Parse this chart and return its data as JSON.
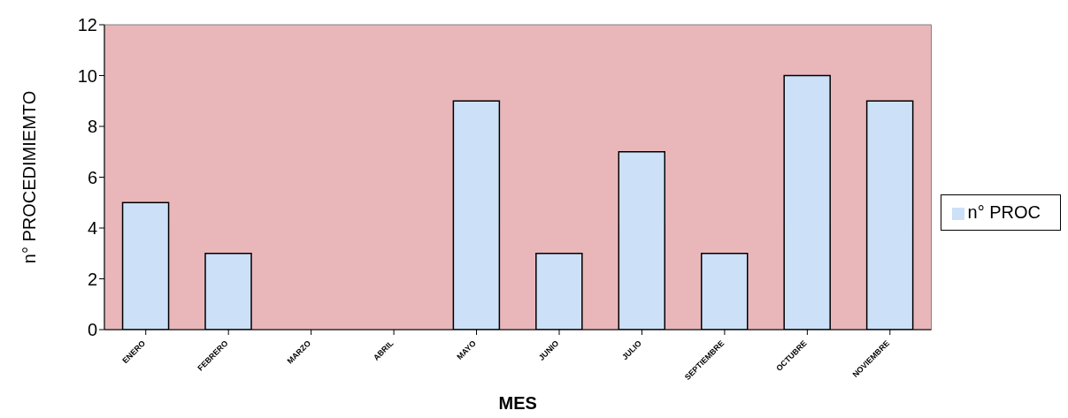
{
  "chart_data": {
    "type": "bar",
    "xlabel": "MES",
    "ylabel": "n° PROCEDIMIEMTO",
    "categories": [
      "ENERO",
      "FEBRERO",
      "MARZO",
      "ABRIL",
      "MAYO",
      "JUNIO",
      "JULIO",
      "SEPTIEMBRE",
      "OCTUBRE",
      "NOVIEMBRE"
    ],
    "series": [
      {
        "name": "n° PROC",
        "color": "#cce0f8",
        "values": [
          5,
          3,
          0,
          0,
          9,
          3,
          7,
          3,
          10,
          9
        ]
      }
    ],
    "ylim": [
      0,
      12
    ],
    "yticks": [
      0,
      2,
      4,
      6,
      8,
      10,
      12
    ],
    "grid": false,
    "legend": "right"
  }
}
